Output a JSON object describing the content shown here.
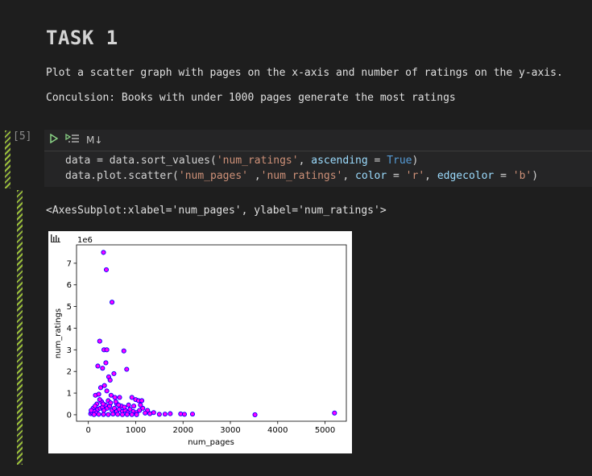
{
  "markdown": {
    "title": "TASK 1",
    "line1": "Plot a scatter graph with pages on the x-axis and number of ratings on the y-axis.",
    "line2": "Conculsion: Books with under 1000 pages generate the most ratings"
  },
  "cell": {
    "execution_count": "[5]",
    "toolbar": {
      "run_icon": "run-icon",
      "markdown_label": "M↓"
    },
    "code_line1": {
      "a": "data = data.sort_values(",
      "s1": "'num_ratings'",
      "b": ", ",
      "kw": "ascending",
      "c": " = ",
      "bool": "True",
      "d": ")"
    },
    "code_line2": {
      "a": "data.plot.scatter(",
      "s1": "'num_pages' ",
      "b": ",",
      "s2": "'num_ratings'",
      "c": ", ",
      "kw1": "color",
      "d": " = ",
      "s3": "'r'",
      "e": ", ",
      "kw2": "edgecolor",
      "f": " = ",
      "s4": "'b'",
      "g": ")"
    }
  },
  "output": {
    "text": "<AxesSubplot:xlabel='num_pages', ylabel='num_ratings'>"
  },
  "chart_data": {
    "type": "scatter",
    "xlabel": "num_pages",
    "ylabel": "num_ratings",
    "offset_label": "1e6",
    "xlim": [
      -250,
      5450
    ],
    "ylim": [
      -300000,
      7850000
    ],
    "xticks": [
      0,
      1000,
      2000,
      3000,
      4000,
      5000
    ],
    "yticks": [
      0,
      1,
      2,
      3,
      4,
      5,
      6,
      7
    ],
    "marker_fill": "#ff00ff",
    "marker_edge": "#0000ff",
    "points": [
      [
        320,
        7500000
      ],
      [
        380,
        6700000
      ],
      [
        500,
        5200000
      ],
      [
        240,
        3400000
      ],
      [
        330,
        3000000
      ],
      [
        390,
        3000000
      ],
      [
        750,
        2950000
      ],
      [
        200,
        2250000
      ],
      [
        370,
        2400000
      ],
      [
        300,
        2150000
      ],
      [
        540,
        1900000
      ],
      [
        810,
        2100000
      ],
      [
        430,
        1750000
      ],
      [
        460,
        1600000
      ],
      [
        260,
        1250000
      ],
      [
        340,
        1350000
      ],
      [
        390,
        1100000
      ],
      [
        150,
        900000
      ],
      [
        220,
        950000
      ],
      [
        480,
        900000
      ],
      [
        560,
        800000
      ],
      [
        660,
        800000
      ],
      [
        920,
        800000
      ],
      [
        1000,
        700000
      ],
      [
        1060,
        650000
      ],
      [
        1130,
        650000
      ],
      [
        100,
        300000
      ],
      [
        180,
        500000
      ],
      [
        280,
        600000
      ],
      [
        420,
        650000
      ],
      [
        600,
        500000
      ],
      [
        700,
        400000
      ],
      [
        850,
        450000
      ],
      [
        1150,
        300000
      ],
      [
        1250,
        200000
      ],
      [
        1380,
        100000
      ],
      [
        50,
        50000
      ],
      [
        80,
        100000
      ],
      [
        130,
        150000
      ],
      [
        170,
        80000
      ],
      [
        200,
        250000
      ],
      [
        250,
        300000
      ],
      [
        300,
        350000
      ],
      [
        330,
        200000
      ],
      [
        360,
        450000
      ],
      [
        400,
        300000
      ],
      [
        450,
        400000
      ],
      [
        500,
        200000
      ],
      [
        550,
        300000
      ],
      [
        600,
        150000
      ],
      [
        650,
        250000
      ],
      [
        720,
        150000
      ],
      [
        780,
        200000
      ],
      [
        830,
        100000
      ],
      [
        880,
        250000
      ],
      [
        950,
        150000
      ],
      [
        1020,
        100000
      ],
      [
        1080,
        200000
      ],
      [
        1200,
        80000
      ],
      [
        1300,
        50000
      ],
      [
        1500,
        20000
      ],
      [
        1620,
        30000
      ],
      [
        1730,
        50000
      ],
      [
        1950,
        40000
      ],
      [
        2030,
        20000
      ],
      [
        2200,
        30000
      ],
      [
        3520,
        0
      ],
      [
        5200,
        80000
      ],
      [
        120,
        10000
      ],
      [
        220,
        20000
      ],
      [
        320,
        15000
      ],
      [
        420,
        10000
      ],
      [
        520,
        30000
      ],
      [
        620,
        20000
      ],
      [
        720,
        10000
      ],
      [
        820,
        15000
      ],
      [
        920,
        10000
      ],
      [
        1020,
        5000
      ],
      [
        60,
        200000
      ],
      [
        140,
        400000
      ],
      [
        240,
        700000
      ],
      [
        310,
        500000
      ],
      [
        470,
        550000
      ],
      [
        580,
        600000
      ],
      [
        640,
        450000
      ],
      [
        760,
        350000
      ],
      [
        960,
        400000
      ],
      [
        1100,
        450000
      ]
    ]
  }
}
